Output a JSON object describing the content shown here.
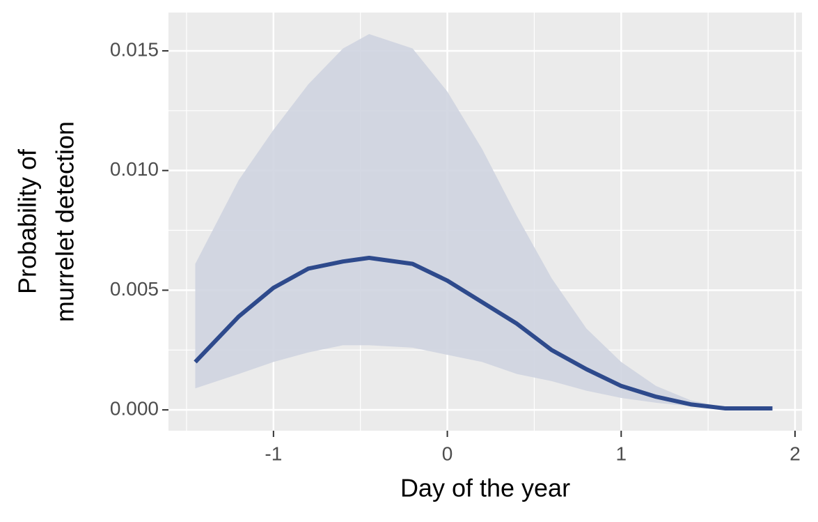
{
  "chart_data": {
    "type": "line",
    "x_label": "Day of the year",
    "y_label": [
      "Probability of",
      "murrelet detection"
    ],
    "x": [
      -1.45,
      -1.2,
      -1,
      -0.8,
      -0.6,
      -0.45,
      -0.2,
      0,
      0.2,
      0.4,
      0.6,
      0.8,
      1,
      1.2,
      1.4,
      1.6,
      1.87
    ],
    "values": [
      0.002,
      0.0039,
      0.0051,
      0.0059,
      0.0062,
      0.00635,
      0.0061,
      0.0054,
      0.0045,
      0.0036,
      0.0025,
      0.0017,
      0.001,
      0.00055,
      0.00023,
      6e-05,
      6e-05
    ],
    "lower": [
      0.0009,
      0.0015,
      0.002,
      0.0024,
      0.0027,
      0.0027,
      0.0026,
      0.0023,
      0.002,
      0.0015,
      0.0012,
      0.0008,
      0.0005,
      0.0003,
      0.00015,
      5e-05,
      1e-05
    ],
    "upper": [
      0.0061,
      0.0096,
      0.0117,
      0.0136,
      0.0151,
      0.0157,
      0.0151,
      0.0133,
      0.0109,
      0.0081,
      0.0055,
      0.0034,
      0.002,
      0.001,
      0.0004,
      0.0001,
      3e-05
    ],
    "color": "#2e4a8c",
    "band_color": "#cfd4e0",
    "xlim": [
      -1.604,
      2.04
    ],
    "ylim": [
      -0.00087,
      0.0166
    ],
    "xticks": [
      -1,
      0,
      1,
      2
    ],
    "yticks": [
      {
        "value": 0,
        "label": "0.000"
      },
      {
        "value": 0.005,
        "label": "0.005"
      },
      {
        "value": 0.01,
        "label": "0.010"
      },
      {
        "value": 0.015,
        "label": "0.015"
      }
    ],
    "grid": true
  }
}
